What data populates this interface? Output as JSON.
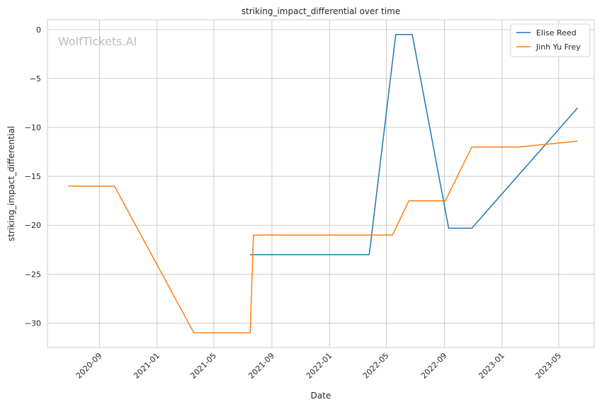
{
  "chart_data": {
    "type": "line",
    "title": "striking_impact_differential over time",
    "xlabel": "Date",
    "ylabel": "striking_impact_differential",
    "watermark": "WolfTickets.AI",
    "x_ticks": [
      "2020-09",
      "2021-01",
      "2021-05",
      "2021-09",
      "2022-01",
      "2022-05",
      "2022-09",
      "2023-01",
      "2023-05"
    ],
    "y_ticks": [
      0,
      -5,
      -10,
      -15,
      -20,
      -25,
      -30
    ],
    "xlim": [
      "2020-05-14",
      "2023-07-15"
    ],
    "ylim": [
      -32.5,
      1
    ],
    "grid": true,
    "legend_position": "top-right",
    "series": [
      {
        "name": "Elise Reed",
        "color": "#1f77b4",
        "points": [
          [
            "2021-07-17",
            -23
          ],
          [
            "2022-03-26",
            -23
          ],
          [
            "2022-05-21",
            -0.5
          ],
          [
            "2022-06-25",
            -0.5
          ],
          [
            "2022-09-10",
            -20.3
          ],
          [
            "2022-10-29",
            -20.3
          ],
          [
            "2023-06-10",
            -8
          ]
        ]
      },
      {
        "name": "Jinh Yu Frey",
        "color": "#ff7f0e",
        "points": [
          [
            "2020-06-27",
            -16
          ],
          [
            "2020-10-03",
            -16
          ],
          [
            "2021-03-20",
            -31
          ],
          [
            "2021-07-17",
            -31
          ],
          [
            "2021-07-24",
            -21
          ],
          [
            "2022-05-14",
            -21
          ],
          [
            "2022-06-18",
            -17.5
          ],
          [
            "2022-09-03",
            -17.5
          ],
          [
            "2022-10-29",
            -12
          ],
          [
            "2023-02-04",
            -12
          ],
          [
            "2023-06-10",
            -11.4
          ]
        ]
      }
    ]
  }
}
